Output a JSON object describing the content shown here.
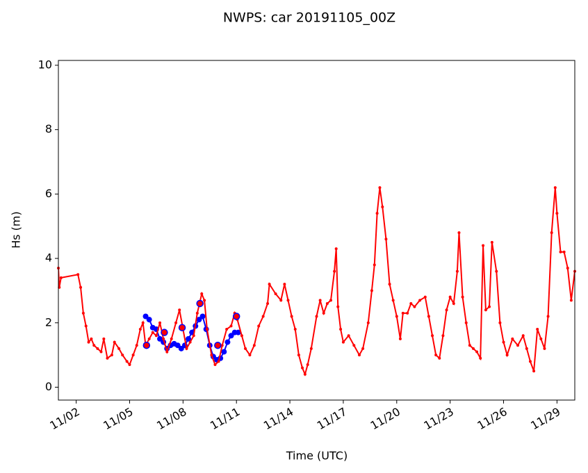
{
  "chart_data": {
    "type": "line",
    "title": "NWPS: car 20191105_00Z",
    "x_label": "Time (UTC)",
    "y_label": "Hs (m)",
    "xlim": [
      1,
      30
    ],
    "ylim": [
      -0.4,
      10.15
    ],
    "xticks": [
      {
        "value": 2,
        "label": "11/02"
      },
      {
        "value": 5,
        "label": "11/05"
      },
      {
        "value": 8,
        "label": "11/08"
      },
      {
        "value": 11,
        "label": "11/11"
      },
      {
        "value": 14,
        "label": "11/14"
      },
      {
        "value": 17,
        "label": "11/17"
      },
      {
        "value": 20,
        "label": "11/20"
      },
      {
        "value": 23,
        "label": "11/23"
      },
      {
        "value": 26,
        "label": "11/26"
      },
      {
        "value": 29,
        "label": "11/29"
      }
    ],
    "yticks": [
      0,
      2,
      4,
      6,
      8,
      10
    ],
    "series": [
      {
        "color": "#0000ff",
        "marker_size": 4,
        "line": true,
        "x": [
          5.9,
          6.1,
          6.3,
          6.5,
          6.7,
          6.9,
          7.1,
          7.3,
          7.5,
          7.7,
          7.9,
          8.1,
          8.3,
          8.5,
          8.7,
          8.9,
          9.1,
          9.3,
          9.5,
          9.7,
          9.9,
          10.1,
          10.3,
          10.5,
          10.7,
          10.9,
          11.1
        ],
        "values": [
          2.2,
          2.1,
          1.85,
          1.8,
          1.5,
          1.4,
          1.2,
          1.3,
          1.35,
          1.3,
          1.2,
          1.3,
          1.5,
          1.7,
          1.9,
          2.1,
          2.2,
          1.8,
          1.3,
          0.95,
          0.85,
          0.9,
          1.1,
          1.4,
          1.6,
          1.7,
          1.7
        ]
      },
      {
        "color": "#ff0000",
        "marker_size": 2,
        "line": true,
        "x": [
          1.0,
          1.05,
          1.15,
          2.1,
          2.25,
          2.4,
          2.55,
          2.7,
          2.85,
          3.0,
          3.2,
          3.4,
          3.55,
          3.75,
          4.0,
          4.15,
          4.4,
          4.6,
          4.85,
          5.0,
          5.2,
          5.4,
          5.6,
          5.75,
          5.9,
          6.1,
          6.3,
          6.5,
          6.7,
          6.9,
          7.1,
          7.35,
          7.6,
          7.8,
          8.0,
          8.2,
          8.4,
          8.6,
          8.8,
          9.05,
          9.2,
          9.35,
          9.6,
          9.8,
          10.0,
          10.2,
          10.45,
          10.7,
          10.9,
          11.05,
          11.3,
          11.5,
          11.75,
          12.0,
          12.25,
          12.5,
          12.75,
          12.85,
          13.2,
          13.5,
          13.7,
          13.9,
          14.1,
          14.3,
          14.5,
          14.7,
          14.85,
          15.0,
          15.2,
          15.5,
          15.7,
          15.9,
          16.1,
          16.3,
          16.5,
          16.6,
          16.7,
          16.85,
          17.0,
          17.3,
          17.6,
          17.9,
          18.1,
          18.4,
          18.6,
          18.75,
          18.9,
          19.05,
          19.2,
          19.4,
          19.6,
          19.8,
          20.0,
          20.2,
          20.35,
          20.6,
          20.8,
          21.0,
          21.3,
          21.6,
          21.8,
          22.0,
          22.2,
          22.4,
          22.6,
          22.8,
          23.0,
          23.2,
          23.4,
          23.5,
          23.7,
          23.9,
          24.1,
          24.3,
          24.5,
          24.7,
          24.85,
          25.0,
          25.2,
          25.35,
          25.6,
          25.8,
          26.0,
          26.2,
          26.5,
          26.8,
          27.1,
          27.3,
          27.5,
          27.7,
          27.9,
          28.1,
          28.3,
          28.5,
          28.7,
          28.9,
          29.0,
          29.2,
          29.4,
          29.6,
          29.8,
          30.0
        ],
        "values": [
          3.7,
          3.1,
          3.4,
          3.5,
          3.1,
          2.3,
          1.9,
          1.4,
          1.5,
          1.3,
          1.2,
          1.1,
          1.5,
          0.9,
          1.0,
          1.4,
          1.2,
          1.0,
          0.8,
          0.7,
          1.0,
          1.3,
          1.8,
          2.0,
          1.3,
          1.5,
          1.7,
          1.6,
          2.0,
          1.5,
          1.1,
          1.5,
          2.0,
          2.4,
          1.8,
          1.2,
          1.4,
          1.6,
          2.3,
          2.9,
          2.7,
          1.8,
          1.0,
          0.7,
          0.8,
          1.3,
          1.8,
          1.9,
          2.3,
          2.1,
          1.6,
          1.2,
          1.0,
          1.3,
          1.9,
          2.2,
          2.6,
          3.2,
          2.9,
          2.7,
          3.2,
          2.7,
          2.2,
          1.8,
          1.0,
          0.6,
          0.4,
          0.7,
          1.2,
          2.2,
          2.7,
          2.3,
          2.6,
          2.7,
          3.6,
          4.3,
          2.5,
          1.8,
          1.4,
          1.6,
          1.3,
          1.0,
          1.2,
          2.0,
          3.0,
          3.8,
          5.4,
          6.2,
          5.6,
          4.6,
          3.2,
          2.7,
          2.2,
          1.5,
          2.3,
          2.3,
          2.6,
          2.5,
          2.7,
          2.8,
          2.2,
          1.6,
          1.0,
          0.9,
          1.6,
          2.4,
          2.8,
          2.6,
          3.6,
          4.8,
          2.8,
          2.0,
          1.3,
          1.2,
          1.1,
          0.9,
          4.4,
          2.4,
          2.5,
          4.5,
          3.6,
          2.0,
          1.4,
          1.0,
          1.5,
          1.3,
          1.6,
          1.2,
          0.8,
          0.5,
          1.8,
          1.5,
          1.2,
          2.2,
          4.8,
          6.2,
          5.4,
          4.2,
          4.2,
          3.7,
          2.7,
          3.6
        ]
      },
      {
        "color": "#ff0000",
        "edge_color": "#0000ff",
        "marker_size": 4.5,
        "line": false,
        "x": [
          5.95,
          6.95,
          7.95,
          8.95,
          9.95,
          11.0
        ],
        "values": [
          1.3,
          1.7,
          1.85,
          2.6,
          1.3,
          2.2
        ]
      }
    ]
  }
}
